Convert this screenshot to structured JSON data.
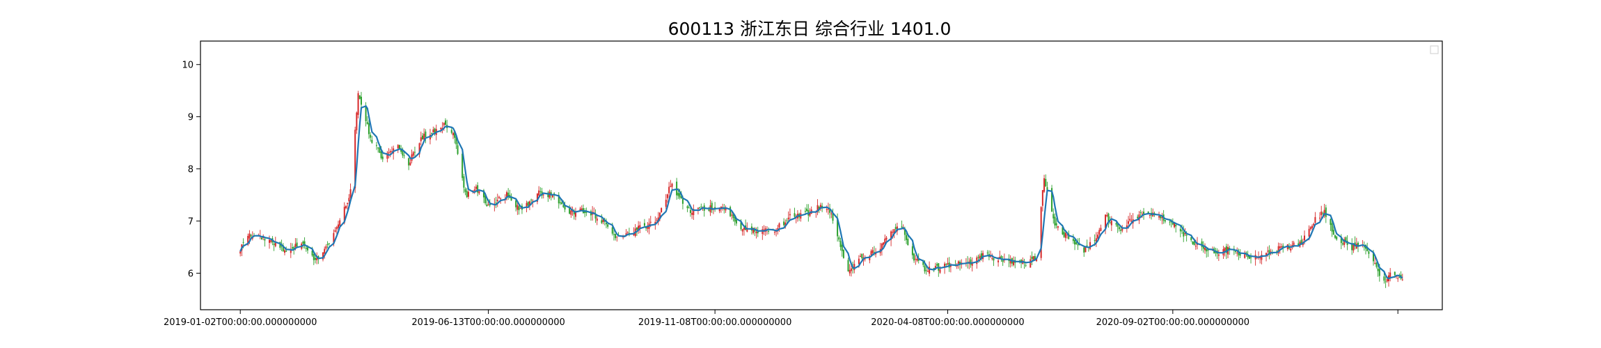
{
  "chart_data": {
    "type": "candlestick",
    "title": "600113 浙江东日 综合行业 1401.0",
    "xlabel": "",
    "ylabel": "",
    "grid": false,
    "legend": "top-right",
    "legend_entries": [],
    "xlim": [
      "2018-12-07",
      "2021-02-25"
    ],
    "ylim": [
      5.3,
      10.45
    ],
    "x_ticks": [
      "2019-01-02",
      "2019-06-13",
      "2019-11-08",
      "2020-04-08",
      "2020-09-02",
      "2021-01-27"
    ],
    "x_tick_labels": [
      "2019-01-02T00:00:00.000000000",
      "2019-06-13T00:00:00.000000000",
      "2019-11-08T00:00:00.000000000",
      "2020-04-08T00:00:00.000000000",
      "2020-09-02T00:00:00.000000000",
      ""
    ],
    "y_ticks": [
      6,
      7,
      8,
      9,
      10
    ],
    "y_tick_labels": [
      "6",
      "7",
      "8",
      "9",
      "10"
    ],
    "colors": {
      "up": "#d62728",
      "down": "#2ca02c",
      "ma": "#1f77b4"
    },
    "close_anchors": [
      [
        "2019-01-02",
        6.45
      ],
      [
        "2019-01-08",
        6.75
      ],
      [
        "2019-01-20",
        6.62
      ],
      [
        "2019-01-31",
        6.45
      ],
      [
        "2019-02-12",
        6.55
      ],
      [
        "2019-02-20",
        6.25
      ],
      [
        "2019-02-28",
        6.5
      ],
      [
        "2019-03-08",
        7.0
      ],
      [
        "2019-03-15",
        7.55
      ],
      [
        "2019-03-20",
        9.5
      ],
      [
        "2019-03-28",
        8.6
      ],
      [
        "2019-04-05",
        8.2
      ],
      [
        "2019-04-15",
        8.45
      ],
      [
        "2019-04-22",
        8.1
      ],
      [
        "2019-04-30",
        8.6
      ],
      [
        "2019-05-08",
        8.7
      ],
      [
        "2019-05-15",
        8.85
      ],
      [
        "2019-05-22",
        8.6
      ],
      [
        "2019-05-29",
        7.5
      ],
      [
        "2019-06-05",
        7.6
      ],
      [
        "2019-06-13",
        7.3
      ],
      [
        "2019-06-25",
        7.5
      ],
      [
        "2019-07-05",
        7.2
      ],
      [
        "2019-07-15",
        7.55
      ],
      [
        "2019-07-25",
        7.5
      ],
      [
        "2019-08-05",
        7.15
      ],
      [
        "2019-08-15",
        7.2
      ],
      [
        "2019-08-25",
        7.05
      ],
      [
        "2019-09-05",
        6.65
      ],
      [
        "2019-09-18",
        6.85
      ],
      [
        "2019-10-01",
        7.0
      ],
      [
        "2019-10-10",
        7.7
      ],
      [
        "2019-10-22",
        7.2
      ],
      [
        "2019-11-01",
        7.25
      ],
      [
        "2019-11-15",
        7.25
      ],
      [
        "2019-11-25",
        6.85
      ],
      [
        "2019-12-06",
        6.8
      ],
      [
        "2019-12-18",
        6.85
      ],
      [
        "2019-12-28",
        7.1
      ],
      [
        "2020-01-08",
        7.15
      ],
      [
        "2020-01-16",
        7.3
      ],
      [
        "2020-01-23",
        7.15
      ],
      [
        "2020-02-03",
        6.05
      ],
      [
        "2020-02-12",
        6.3
      ],
      [
        "2020-02-22",
        6.45
      ],
      [
        "2020-03-02",
        6.75
      ],
      [
        "2020-03-08",
        7.0
      ],
      [
        "2020-03-16",
        6.3
      ],
      [
        "2020-03-25",
        6.05
      ],
      [
        "2020-04-08",
        6.15
      ],
      [
        "2020-04-22",
        6.2
      ],
      [
        "2020-05-01",
        6.35
      ],
      [
        "2020-05-15",
        6.25
      ],
      [
        "2020-05-29",
        6.2
      ],
      [
        "2020-06-05",
        6.3
      ],
      [
        "2020-06-10",
        7.85
      ],
      [
        "2020-06-16",
        7.0
      ],
      [
        "2020-06-26",
        6.65
      ],
      [
        "2020-07-06",
        6.45
      ],
      [
        "2020-07-12",
        6.6
      ],
      [
        "2020-07-20",
        7.1
      ],
      [
        "2020-07-30",
        6.85
      ],
      [
        "2020-08-10",
        7.1
      ],
      [
        "2020-08-22",
        7.15
      ],
      [
        "2020-09-02",
        6.95
      ],
      [
        "2020-09-15",
        6.6
      ],
      [
        "2020-09-29",
        6.4
      ],
      [
        "2020-10-10",
        6.45
      ],
      [
        "2020-10-22",
        6.3
      ],
      [
        "2020-11-01",
        6.35
      ],
      [
        "2020-11-13",
        6.5
      ],
      [
        "2020-11-25",
        6.55
      ],
      [
        "2020-12-03",
        7.0
      ],
      [
        "2020-12-10",
        7.2
      ],
      [
        "2020-12-17",
        6.7
      ],
      [
        "2020-12-28",
        6.5
      ],
      [
        "2021-01-05",
        6.55
      ],
      [
        "2021-01-12",
        6.2
      ],
      [
        "2021-01-17",
        5.85
      ],
      [
        "2021-01-24",
        6.0
      ],
      [
        "2021-01-30",
        5.88
      ]
    ]
  }
}
